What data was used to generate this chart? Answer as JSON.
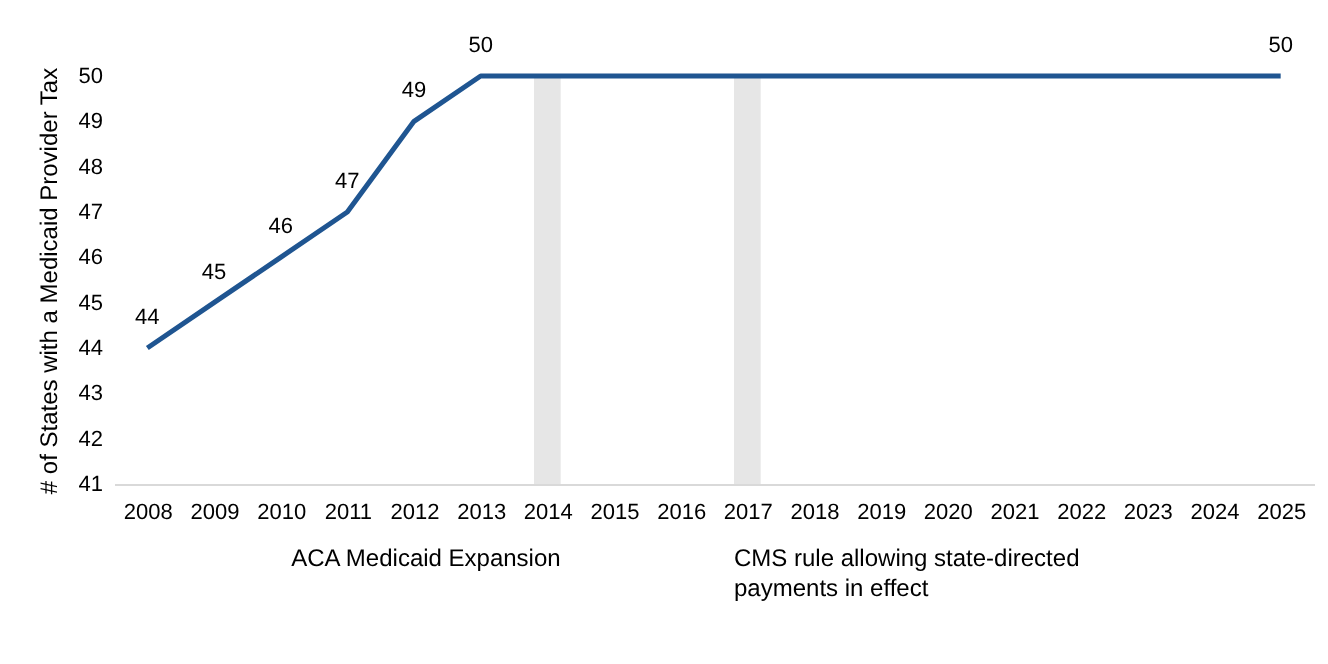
{
  "chart_data": {
    "type": "line",
    "ylabel": "# of States with a Medicaid Provider Tax",
    "x": [
      2008,
      2009,
      2010,
      2011,
      2012,
      2013,
      2014,
      2015,
      2016,
      2017,
      2018,
      2019,
      2020,
      2021,
      2022,
      2023,
      2024,
      2025
    ],
    "series": [
      {
        "color": "#1f5591",
        "values": [
          44,
          45,
          46,
          47,
          49,
          50,
          50,
          50,
          50,
          50,
          50,
          50,
          50,
          50,
          50,
          50,
          50,
          50
        ],
        "value_labels": [
          "44",
          "45",
          "46",
          "47",
          "49",
          "50",
          null,
          null,
          null,
          null,
          null,
          null,
          null,
          null,
          null,
          null,
          null,
          "50"
        ]
      }
    ],
    "xlim": [
      2007.5,
      2025.5
    ],
    "xticks": [
      2008,
      2009,
      2010,
      2011,
      2012,
      2013,
      2014,
      2015,
      2016,
      2017,
      2018,
      2019,
      2020,
      2021,
      2022,
      2023,
      2024,
      2025
    ],
    "ylim": [
      41,
      50
    ],
    "yticks": [
      41,
      42,
      43,
      44,
      45,
      46,
      47,
      48,
      49,
      50
    ],
    "bands": [
      {
        "axis": "x",
        "from": 2013.8,
        "to": 2014.2,
        "label": "ACA Medicaid Expansion",
        "color": "#e6e6e6"
      },
      {
        "axis": "x",
        "from": 2016.8,
        "to": 2017.2,
        "label": "CMS rule allowing state-directed payments in effect",
        "color": "#e6e6e6"
      }
    ],
    "grid": false,
    "marker": "none",
    "line_style": "solid"
  }
}
